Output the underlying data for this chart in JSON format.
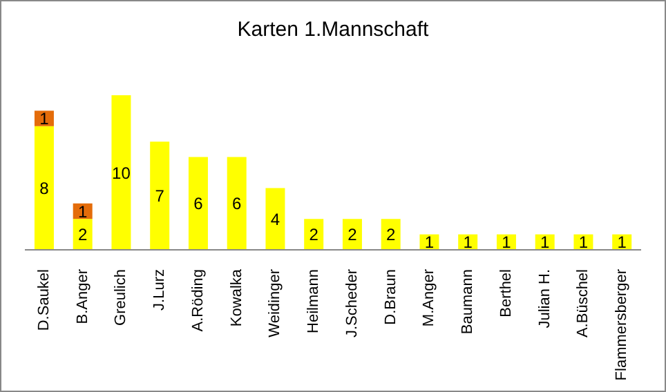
{
  "chart_data": {
    "type": "bar",
    "title": "Karten 1.Mannschaft",
    "stacked": true,
    "data_labels": true,
    "legend": false,
    "grid": false,
    "categories": [
      "D.Saukel",
      "B.Anger",
      "Greulich",
      "J.Lurz",
      "A.Röding",
      "Kowalka",
      "Weidinger",
      "Heilmann",
      "J.Scheder",
      "D.Braun",
      "M.Anger",
      "Baumann",
      "Berthel",
      "Julian H.",
      "A.Büschel",
      "Flammersberger"
    ],
    "series": [
      {
        "color": "#ffff00",
        "values": [
          8,
          2,
          10,
          7,
          6,
          6,
          4,
          2,
          2,
          2,
          1,
          1,
          1,
          1,
          1,
          1
        ]
      },
      {
        "color": "#e46c0a",
        "values": [
          1,
          1,
          null,
          null,
          null,
          null,
          null,
          null,
          null,
          null,
          null,
          null,
          null,
          null,
          null,
          null
        ]
      }
    ]
  }
}
